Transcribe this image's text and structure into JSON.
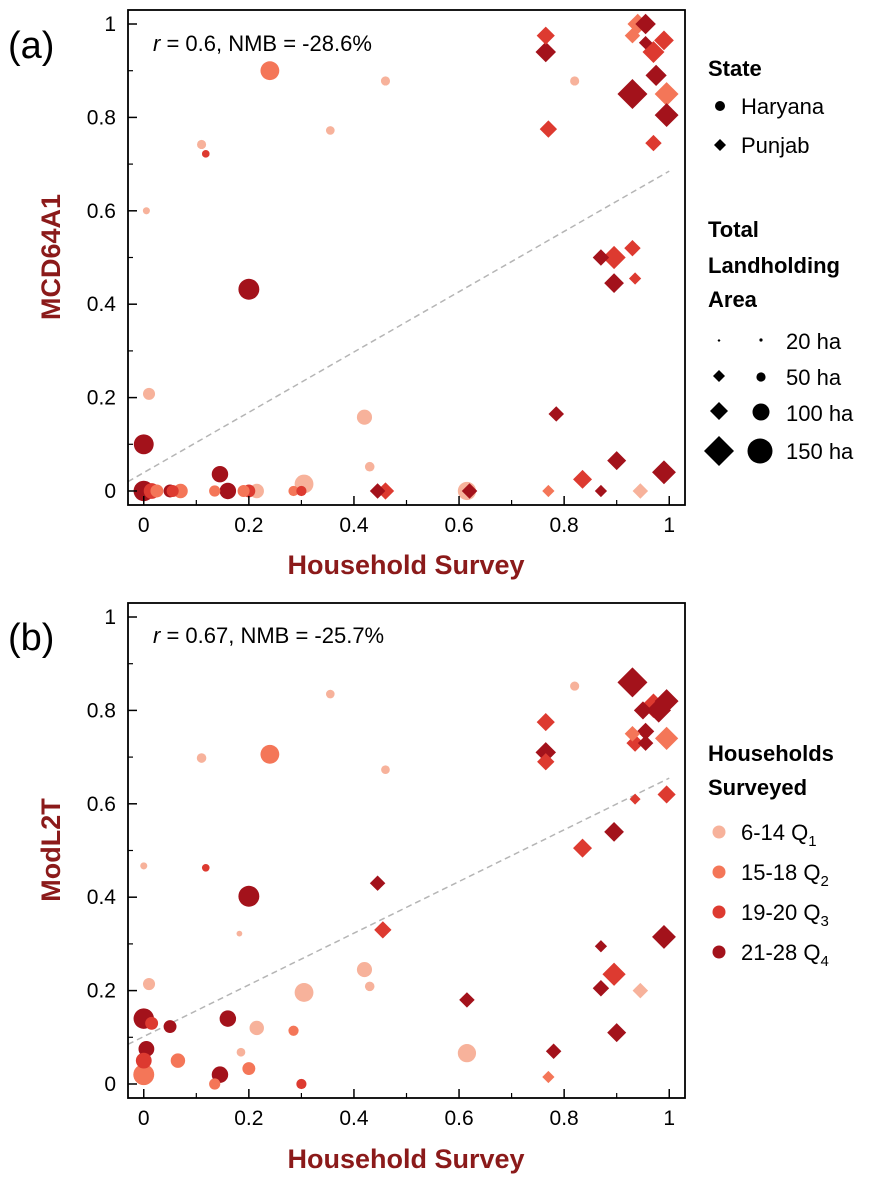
{
  "colors": {
    "Q1": "#f7b29b",
    "Q2": "#f47658",
    "Q3": "#dd3a30",
    "Q4": "#a3121b",
    "axis_title": "#8b1a1a",
    "regression": "#b5b5b5",
    "frame": "#000000"
  },
  "legend": {
    "state": {
      "title": "State",
      "items": [
        {
          "shape": "circle",
          "label": "Haryana"
        },
        {
          "shape": "diamond",
          "label": "Punjab"
        }
      ]
    },
    "area": {
      "title_lines": [
        "Total",
        "Landholding",
        "Area"
      ],
      "items": [
        {
          "size_ha": 20,
          "label": "20 ha"
        },
        {
          "size_ha": 50,
          "label": "50 ha"
        },
        {
          "size_ha": 100,
          "label": "100 ha"
        },
        {
          "size_ha": 150,
          "label": "150 ha"
        }
      ]
    },
    "households": {
      "title_lines": [
        "Households",
        "Surveyed"
      ],
      "items": [
        {
          "quartile": "Q1",
          "range": "6-14",
          "q": "Q",
          "sub": "1"
        },
        {
          "quartile": "Q2",
          "range": "15-18",
          "q": "Q",
          "sub": "2"
        },
        {
          "quartile": "Q3",
          "range": "19-20",
          "q": "Q",
          "sub": "3"
        },
        {
          "quartile": "Q4",
          "range": "21-28",
          "q": "Q",
          "sub": "4"
        }
      ]
    }
  },
  "chart_data": [
    {
      "type": "scatter",
      "panel_label": "(a)",
      "xlabel": "Household Survey",
      "ylabel": "MCD64A1",
      "annotation": {
        "r_symbol": "r",
        "text": " = 0.6, NMB = -28.6%"
      },
      "xlim": [
        -0.03,
        1.03
      ],
      "ylim": [
        -0.03,
        1.03
      ],
      "xticks": [
        0,
        0.2,
        0.4,
        0.6,
        0.8,
        1
      ],
      "xtick_labels": [
        "0",
        "0.2",
        "0.4",
        "0.6",
        "0.8",
        "1"
      ],
      "yticks": [
        0,
        0.2,
        0.4,
        0.6,
        0.8,
        1
      ],
      "ytick_labels": [
        "0",
        "0.2",
        "0.4",
        "0.6",
        "0.8",
        "1"
      ],
      "regression_line": {
        "x": [
          -0.03,
          1.0
        ],
        "y": [
          0.02,
          0.685
        ]
      },
      "points": [
        {
          "x": 0.94,
          "y": 1.0,
          "state": "Punjab",
          "q": "Q2",
          "area": 70
        },
        {
          "x": 0.955,
          "y": 1.0,
          "state": "Punjab",
          "q": "Q4",
          "area": 70
        },
        {
          "x": 0.93,
          "y": 0.975,
          "state": "Punjab",
          "q": "Q2",
          "area": 40
        },
        {
          "x": 0.955,
          "y": 0.96,
          "state": "Punjab",
          "q": "Q4",
          "area": 30
        },
        {
          "x": 0.97,
          "y": 0.94,
          "state": "Punjab",
          "q": "Q3",
          "area": 80
        },
        {
          "x": 0.99,
          "y": 0.965,
          "state": "Punjab",
          "q": "Q3",
          "area": 65
        },
        {
          "x": 0.765,
          "y": 0.975,
          "state": "Punjab",
          "q": "Q3",
          "area": 55
        },
        {
          "x": 0.765,
          "y": 0.94,
          "state": "Punjab",
          "q": "Q4",
          "area": 70
        },
        {
          "x": 0.93,
          "y": 0.85,
          "state": "Punjab",
          "q": "Q4",
          "area": 150
        },
        {
          "x": 0.995,
          "y": 0.85,
          "state": "Punjab",
          "q": "Q2",
          "area": 95
        },
        {
          "x": 0.975,
          "y": 0.89,
          "state": "Punjab",
          "q": "Q4",
          "area": 75
        },
        {
          "x": 0.995,
          "y": 0.805,
          "state": "Punjab",
          "q": "Q4",
          "area": 95
        },
        {
          "x": 0.77,
          "y": 0.775,
          "state": "Punjab",
          "q": "Q3",
          "area": 50
        },
        {
          "x": 0.97,
          "y": 0.745,
          "state": "Punjab",
          "q": "Q3",
          "area": 45
        },
        {
          "x": 0.87,
          "y": 0.5,
          "state": "Punjab",
          "q": "Q4",
          "area": 45
        },
        {
          "x": 0.895,
          "y": 0.5,
          "state": "Punjab",
          "q": "Q3",
          "area": 90
        },
        {
          "x": 0.93,
          "y": 0.52,
          "state": "Punjab",
          "q": "Q3",
          "area": 45
        },
        {
          "x": 0.935,
          "y": 0.455,
          "state": "Punjab",
          "q": "Q3",
          "area": 25
        },
        {
          "x": 0.895,
          "y": 0.445,
          "state": "Punjab",
          "q": "Q4",
          "area": 65
        },
        {
          "x": 0.785,
          "y": 0.165,
          "state": "Punjab",
          "q": "Q4",
          "area": 40
        },
        {
          "x": 0.9,
          "y": 0.065,
          "state": "Punjab",
          "q": "Q4",
          "area": 60
        },
        {
          "x": 0.835,
          "y": 0.025,
          "state": "Punjab",
          "q": "Q3",
          "area": 60
        },
        {
          "x": 0.99,
          "y": 0.04,
          "state": "Punjab",
          "q": "Q4",
          "area": 95
        },
        {
          "x": 0.945,
          "y": 0.0,
          "state": "Punjab",
          "q": "Q1",
          "area": 40
        },
        {
          "x": 0.87,
          "y": 0.0,
          "state": "Punjab",
          "q": "Q4",
          "area": 25
        },
        {
          "x": 0.77,
          "y": 0.0,
          "state": "Punjab",
          "q": "Q2",
          "area": 25
        },
        {
          "x": 0.62,
          "y": 0.0,
          "state": "Punjab",
          "q": "Q4",
          "area": 40
        },
        {
          "x": 0.46,
          "y": 0.0,
          "state": "Punjab",
          "q": "Q3",
          "area": 50
        },
        {
          "x": 0.445,
          "y": 0.0,
          "state": "Punjab",
          "q": "Q4",
          "area": 40
        },
        {
          "x": 0.24,
          "y": 0.9,
          "state": "Haryana",
          "q": "Q2",
          "area": 85
        },
        {
          "x": 0.46,
          "y": 0.878,
          "state": "Haryana",
          "q": "Q1",
          "area": 20
        },
        {
          "x": 0.82,
          "y": 0.878,
          "state": "Haryana",
          "q": "Q1",
          "area": 20
        },
        {
          "x": 0.355,
          "y": 0.772,
          "state": "Haryana",
          "q": "Q1",
          "area": 18
        },
        {
          "x": 0.11,
          "y": 0.742,
          "state": "Haryana",
          "q": "Q1",
          "area": 20
        },
        {
          "x": 0.118,
          "y": 0.722,
          "state": "Haryana",
          "q": "Q3",
          "area": 14
        },
        {
          "x": 0.005,
          "y": 0.6,
          "state": "Haryana",
          "q": "Q1",
          "area": 12
        },
        {
          "x": 0.2,
          "y": 0.432,
          "state": "Haryana",
          "q": "Q4",
          "area": 105
        },
        {
          "x": 0.01,
          "y": 0.208,
          "state": "Haryana",
          "q": "Q1",
          "area": 35
        },
        {
          "x": 0.42,
          "y": 0.158,
          "state": "Haryana",
          "q": "Q1",
          "area": 55
        },
        {
          "x": 0.43,
          "y": 0.052,
          "state": "Haryana",
          "q": "Q1",
          "area": 22
        },
        {
          "x": 0.0,
          "y": 0.1,
          "state": "Haryana",
          "q": "Q4",
          "area": 95
        },
        {
          "x": 0.145,
          "y": 0.036,
          "state": "Haryana",
          "q": "Q4",
          "area": 65
        },
        {
          "x": 0.305,
          "y": 0.015,
          "state": "Haryana",
          "q": "Q1",
          "area": 85
        },
        {
          "x": 0.0,
          "y": 0.0,
          "state": "Haryana",
          "q": "Q4",
          "area": 100
        },
        {
          "x": 0.015,
          "y": 0.0,
          "state": "Haryana",
          "q": "Q3",
          "area": 60
        },
        {
          "x": 0.025,
          "y": 0.0,
          "state": "Haryana",
          "q": "Q2",
          "area": 40
        },
        {
          "x": 0.05,
          "y": 0.0,
          "state": "Haryana",
          "q": "Q4",
          "area": 40
        },
        {
          "x": 0.055,
          "y": 0.0,
          "state": "Haryana",
          "q": "Q3",
          "area": 35
        },
        {
          "x": 0.07,
          "y": 0.0,
          "state": "Haryana",
          "q": "Q2",
          "area": 50
        },
        {
          "x": 0.135,
          "y": 0.0,
          "state": "Haryana",
          "q": "Q2",
          "area": 30
        },
        {
          "x": 0.16,
          "y": 0.0,
          "state": "Haryana",
          "q": "Q4",
          "area": 65
        },
        {
          "x": 0.19,
          "y": 0.0,
          "state": "Haryana",
          "q": "Q2",
          "area": 35
        },
        {
          "x": 0.2,
          "y": 0.0,
          "state": "Haryana",
          "q": "Q3",
          "area": 40
        },
        {
          "x": 0.215,
          "y": 0.0,
          "state": "Haryana",
          "q": "Q1",
          "area": 50
        },
        {
          "x": 0.285,
          "y": 0.0,
          "state": "Haryana",
          "q": "Q2",
          "area": 25
        },
        {
          "x": 0.3,
          "y": 0.0,
          "state": "Haryana",
          "q": "Q3",
          "area": 25
        },
        {
          "x": 0.615,
          "y": 0.0,
          "state": "Haryana",
          "q": "Q1",
          "area": 80
        }
      ]
    },
    {
      "type": "scatter",
      "panel_label": "(b)",
      "xlabel": "Household Survey",
      "ylabel": "ModL2T",
      "annotation": {
        "r_symbol": "r",
        "text": " = 0.67, NMB = -25.7%"
      },
      "xlim": [
        -0.03,
        1.03
      ],
      "ylim": [
        -0.03,
        1.03
      ],
      "xticks": [
        0,
        0.2,
        0.4,
        0.6,
        0.8,
        1
      ],
      "xtick_labels": [
        "0",
        "0.2",
        "0.4",
        "0.6",
        "0.8",
        "1"
      ],
      "yticks": [
        0,
        0.2,
        0.4,
        0.6,
        0.8,
        1
      ],
      "ytick_labels": [
        "0",
        "0.2",
        "0.4",
        "0.6",
        "0.8",
        "1"
      ],
      "regression_line": {
        "x": [
          -0.03,
          1.0
        ],
        "y": [
          0.085,
          0.655
        ]
      },
      "points": [
        {
          "x": 0.93,
          "y": 0.86,
          "state": "Punjab",
          "q": "Q4",
          "area": 150
        },
        {
          "x": 0.97,
          "y": 0.81,
          "state": "Punjab",
          "q": "Q3",
          "area": 100
        },
        {
          "x": 0.98,
          "y": 0.8,
          "state": "Punjab",
          "q": "Q4",
          "area": 100
        },
        {
          "x": 0.995,
          "y": 0.82,
          "state": "Punjab",
          "q": "Q4",
          "area": 95
        },
        {
          "x": 0.95,
          "y": 0.8,
          "state": "Punjab",
          "q": "Q4",
          "area": 55
        },
        {
          "x": 0.955,
          "y": 0.755,
          "state": "Punjab",
          "q": "Q4",
          "area": 50
        },
        {
          "x": 0.955,
          "y": 0.73,
          "state": "Punjab",
          "q": "Q4",
          "area": 40
        },
        {
          "x": 0.93,
          "y": 0.75,
          "state": "Punjab",
          "q": "Q2",
          "area": 40
        },
        {
          "x": 0.935,
          "y": 0.73,
          "state": "Punjab",
          "q": "Q3",
          "area": 50
        },
        {
          "x": 0.995,
          "y": 0.74,
          "state": "Punjab",
          "q": "Q2",
          "area": 90
        },
        {
          "x": 0.765,
          "y": 0.775,
          "state": "Punjab",
          "q": "Q3",
          "area": 55
        },
        {
          "x": 0.765,
          "y": 0.71,
          "state": "Punjab",
          "q": "Q4",
          "area": 70
        },
        {
          "x": 0.765,
          "y": 0.69,
          "state": "Punjab",
          "q": "Q3",
          "area": 50
        },
        {
          "x": 0.995,
          "y": 0.62,
          "state": "Punjab",
          "q": "Q3",
          "area": 55
        },
        {
          "x": 0.935,
          "y": 0.61,
          "state": "Punjab",
          "q": "Q3",
          "area": 20
        },
        {
          "x": 0.895,
          "y": 0.54,
          "state": "Punjab",
          "q": "Q4",
          "area": 65
        },
        {
          "x": 0.835,
          "y": 0.505,
          "state": "Punjab",
          "q": "Q3",
          "area": 60
        },
        {
          "x": 0.445,
          "y": 0.43,
          "state": "Punjab",
          "q": "Q4",
          "area": 40
        },
        {
          "x": 0.455,
          "y": 0.33,
          "state": "Punjab",
          "q": "Q3",
          "area": 50
        },
        {
          "x": 0.99,
          "y": 0.315,
          "state": "Punjab",
          "q": "Q4",
          "area": 95
        },
        {
          "x": 0.87,
          "y": 0.295,
          "state": "Punjab",
          "q": "Q4",
          "area": 25
        },
        {
          "x": 0.895,
          "y": 0.235,
          "state": "Punjab",
          "q": "Q3",
          "area": 90
        },
        {
          "x": 0.945,
          "y": 0.2,
          "state": "Punjab",
          "q": "Q1",
          "area": 40
        },
        {
          "x": 0.87,
          "y": 0.205,
          "state": "Punjab",
          "q": "Q4",
          "area": 45
        },
        {
          "x": 0.615,
          "y": 0.18,
          "state": "Punjab",
          "q": "Q4",
          "area": 40
        },
        {
          "x": 0.9,
          "y": 0.11,
          "state": "Punjab",
          "q": "Q4",
          "area": 60
        },
        {
          "x": 0.78,
          "y": 0.07,
          "state": "Punjab",
          "q": "Q4",
          "area": 40
        },
        {
          "x": 0.77,
          "y": 0.015,
          "state": "Punjab",
          "q": "Q2",
          "area": 25
        },
        {
          "x": 0.355,
          "y": 0.835,
          "state": "Haryana",
          "q": "Q1",
          "area": 18
        },
        {
          "x": 0.82,
          "y": 0.852,
          "state": "Haryana",
          "q": "Q1",
          "area": 20
        },
        {
          "x": 0.11,
          "y": 0.698,
          "state": "Haryana",
          "q": "Q1",
          "area": 22
        },
        {
          "x": 0.24,
          "y": 0.706,
          "state": "Haryana",
          "q": "Q2",
          "area": 85
        },
        {
          "x": 0.46,
          "y": 0.673,
          "state": "Haryana",
          "q": "Q1",
          "area": 18
        },
        {
          "x": 0.0,
          "y": 0.467,
          "state": "Haryana",
          "q": "Q1",
          "area": 12
        },
        {
          "x": 0.118,
          "y": 0.463,
          "state": "Haryana",
          "q": "Q3",
          "area": 14
        },
        {
          "x": 0.2,
          "y": 0.402,
          "state": "Haryana",
          "q": "Q4",
          "area": 105
        },
        {
          "x": 0.182,
          "y": 0.322,
          "state": "Haryana",
          "q": "Q1",
          "area": 8
        },
        {
          "x": 0.42,
          "y": 0.245,
          "state": "Haryana",
          "q": "Q1",
          "area": 55
        },
        {
          "x": 0.01,
          "y": 0.214,
          "state": "Haryana",
          "q": "Q1",
          "area": 35
        },
        {
          "x": 0.43,
          "y": 0.209,
          "state": "Haryana",
          "q": "Q1",
          "area": 22
        },
        {
          "x": 0.305,
          "y": 0.196,
          "state": "Haryana",
          "q": "Q1",
          "area": 85
        },
        {
          "x": 0.0,
          "y": 0.14,
          "state": "Haryana",
          "q": "Q4",
          "area": 100
        },
        {
          "x": 0.16,
          "y": 0.14,
          "state": "Haryana",
          "q": "Q4",
          "area": 65
        },
        {
          "x": 0.05,
          "y": 0.123,
          "state": "Haryana",
          "q": "Q4",
          "area": 40
        },
        {
          "x": 0.015,
          "y": 0.13,
          "state": "Haryana",
          "q": "Q3",
          "area": 40
        },
        {
          "x": 0.215,
          "y": 0.12,
          "state": "Haryana",
          "q": "Q1",
          "area": 50
        },
        {
          "x": 0.285,
          "y": 0.114,
          "state": "Haryana",
          "q": "Q2",
          "area": 25
        },
        {
          "x": 0.005,
          "y": 0.075,
          "state": "Haryana",
          "q": "Q4",
          "area": 60
        },
        {
          "x": 0.185,
          "y": 0.068,
          "state": "Haryana",
          "q": "Q1",
          "area": 18
        },
        {
          "x": 0.615,
          "y": 0.066,
          "state": "Haryana",
          "q": "Q1",
          "area": 80
        },
        {
          "x": 0.0,
          "y": 0.05,
          "state": "Haryana",
          "q": "Q3",
          "area": 60
        },
        {
          "x": 0.065,
          "y": 0.05,
          "state": "Haryana",
          "q": "Q2",
          "area": 50
        },
        {
          "x": 0.2,
          "y": 0.033,
          "state": "Haryana",
          "q": "Q2",
          "area": 40
        },
        {
          "x": 0.0,
          "y": 0.02,
          "state": "Haryana",
          "q": "Q2",
          "area": 105
        },
        {
          "x": 0.145,
          "y": 0.02,
          "state": "Haryana",
          "q": "Q4",
          "area": 65
        },
        {
          "x": 0.135,
          "y": 0.0,
          "state": "Haryana",
          "q": "Q2",
          "area": 30
        },
        {
          "x": 0.3,
          "y": 0.0,
          "state": "Haryana",
          "q": "Q3",
          "area": 25
        }
      ]
    }
  ]
}
